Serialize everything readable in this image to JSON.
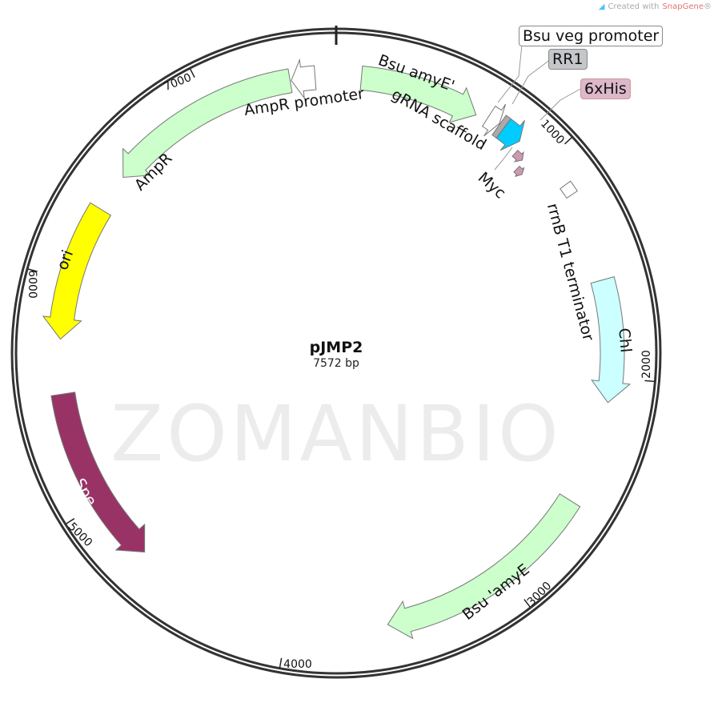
{
  "credit": {
    "prefix": "Created with",
    "brand": "SnapGene",
    "suffix": "®",
    "icon": "snapgene-logo-icon"
  },
  "watermark": "ZOMANBIO",
  "plasmid": {
    "name": "pJMP2",
    "length_label": "7572 bp",
    "length": 7572
  },
  "ticks": [
    {
      "bp": 1000,
      "label": "1000"
    },
    {
      "bp": 2000,
      "label": "2000"
    },
    {
      "bp": 3000,
      "label": "3000"
    },
    {
      "bp": 4000,
      "label": "4000"
    },
    {
      "bp": 5000,
      "label": "5000"
    },
    {
      "bp": 6000,
      "label": "6000"
    },
    {
      "bp": 7000,
      "label": "7000"
    }
  ],
  "features": [
    {
      "name": "Bsu amyE'",
      "start": 110,
      "end": 640,
      "strand": 1,
      "color": "#ccffcc"
    },
    {
      "name": "Bsu veg promoter",
      "start": 690,
      "end": 745,
      "strand": 1,
      "color": "#ffffff"
    },
    {
      "name": "RR1",
      "start": 748,
      "end": 772,
      "strand": 0,
      "color": "#aaaaaa"
    },
    {
      "name": "gRNA scaffold",
      "start": 772,
      "end": 860,
      "strand": 1,
      "color": "#00ccff"
    },
    {
      "name": "Myc",
      "start": 880,
      "end": 925,
      "strand": 1,
      "color": "#cc99b2"
    },
    {
      "name": "6xHis",
      "start": 935,
      "end": 970,
      "strand": 1,
      "color": "#cc99b2"
    },
    {
      "name": "rrnB T1 terminator",
      "start": 1130,
      "end": 1180,
      "strand": 0,
      "color": "#ffffff"
    },
    {
      "name": "Chl",
      "start": 1570,
      "end": 2110,
      "strand": 1,
      "color": "#ccffff"
    },
    {
      "name": "Bsu 'amyE",
      "start": 2570,
      "end": 3560,
      "strand": 1,
      "color": "#ccffcc"
    },
    {
      "name": "Spe",
      "start": 4710,
      "end": 5500,
      "strand": -1,
      "color": "#993366"
    },
    {
      "name": "ori",
      "start": 5740,
      "end": 6340,
      "strand": -1,
      "color": "#ffff00"
    },
    {
      "name": "AmpR",
      "start": 6510,
      "end": 7370,
      "strand": -1,
      "color": "#ccffcc"
    },
    {
      "name": "AmpR promoter",
      "start": 7375,
      "end": 7480,
      "strand": -1,
      "color": "#ffffff"
    }
  ]
}
